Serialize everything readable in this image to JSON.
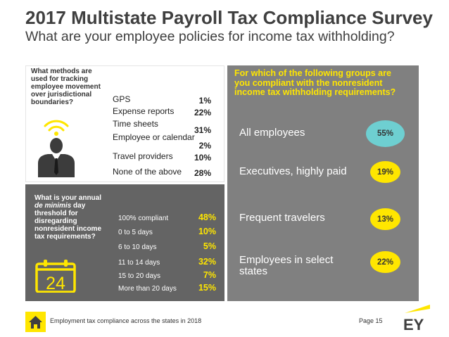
{
  "header": {
    "title": "2017 Multistate Payroll Tax Compliance Survey",
    "subtitle": "What are your employee policies for income tax withholding?"
  },
  "colors": {
    "yellow": "#ffe600",
    "teal": "#6ecfd1",
    "dark_gray": "#646464",
    "mid_gray": "#808080"
  },
  "chart_data": [
    {
      "type": "table",
      "title": "What methods are used for tracking employee movement over jurisdictional boundaries?",
      "categories": [
        "GPS",
        "Expense reports",
        "Time sheets",
        "Employee or calendar",
        "Travel providers",
        "None of the above"
      ],
      "display_values": [
        "1%",
        "22%",
        "31%",
        "2%",
        "10%",
        "28%"
      ],
      "values": [
        1,
        22,
        31,
        2,
        10,
        28
      ]
    },
    {
      "type": "table",
      "title_parts": [
        "What is your annual ",
        "de minimis",
        " day threshold for disregarding nonresident income tax requirements?"
      ],
      "categories": [
        "100% compliant",
        "0 to 5 days",
        "6 to 10 days",
        "11 to 14 days",
        "15 to 20 days",
        "More than 20 days"
      ],
      "display_values": [
        "48%",
        "10%",
        "5%",
        "32%",
        "7%",
        "15%"
      ],
      "values": [
        48,
        10,
        5,
        32,
        7,
        15
      ]
    },
    {
      "type": "scatter",
      "title": "For which of the following groups are you compliant with the nonresident income tax withholding requirements?",
      "categories": [
        "All employees",
        "Executives, highly paid",
        "Frequent travelers",
        "Employees in select states"
      ],
      "display_values": [
        "55%",
        "19%",
        "13%",
        "22%"
      ],
      "values": [
        55,
        19,
        13,
        22
      ]
    }
  ],
  "calendar_icon": {
    "name": "calendar-icon",
    "number": "24"
  },
  "person_icon": {
    "name": "person-wifi-icon"
  },
  "footer": {
    "home_icon": "home-icon",
    "text": "Employment tax compliance across the states in 2018",
    "page": "Page 15",
    "logo": "EY"
  }
}
